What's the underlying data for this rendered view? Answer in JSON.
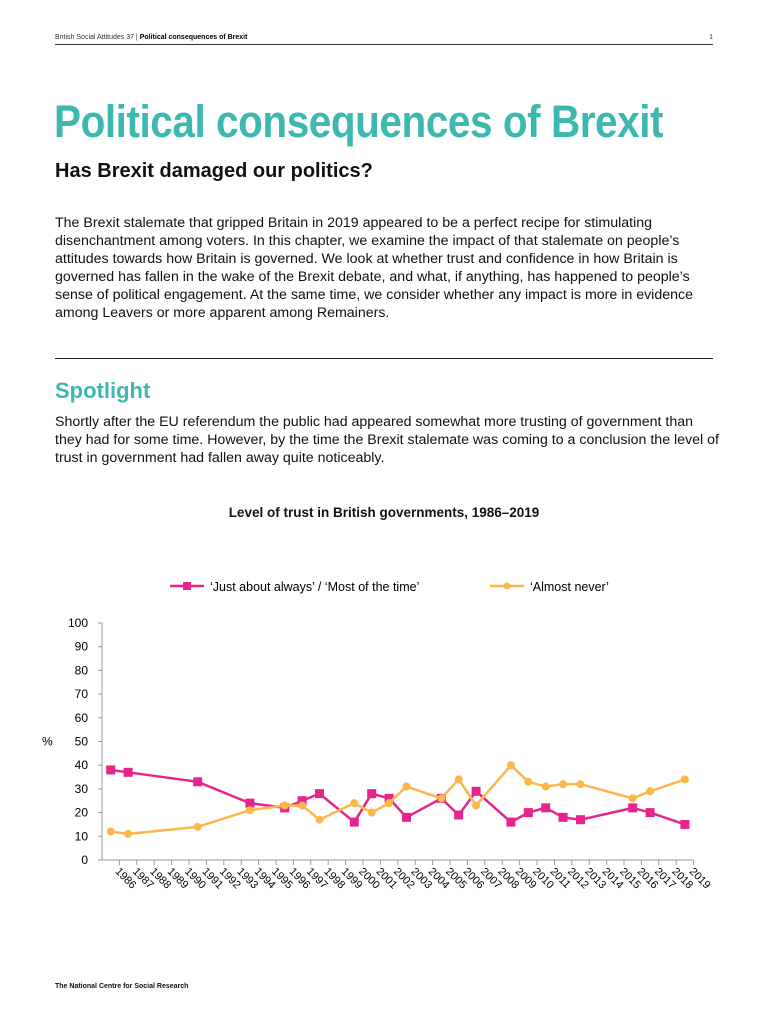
{
  "header": {
    "publication": "British Social Attitudes 37 |",
    "chapter": "Political consequences of Brexit",
    "page": "1"
  },
  "title": "Political consequences of Brexit",
  "subtitle": "Has Brexit damaged our politics?",
  "intro": "The Brexit stalemate that gripped Britain in 2019 appeared to be a perfect recipe for stimulating disenchantment among voters. In this chapter, we examine the impact of that stalemate on people’s attitudes towards how Britain is governed. We look at whether trust and confidence in how Britain is governed has fallen in the wake of the Brexit debate, and what, if anything, has happened to people’s sense of political engagement. At the same time, we consider whether any impact is more in evidence among Leavers or more apparent among Remainers.",
  "spotlight": {
    "heading": "Spotlight",
    "text": "Shortly after the EU referendum the public had appeared somewhat more trusting of government than they had for some time. However, by the time the Brexit stalemate was coming to a conclusion the level of trust in government had fallen away quite noticeably."
  },
  "footer": "The National Centre for Social Research",
  "chart_data": {
    "type": "line",
    "title": "Level of trust in British governments, 1986–2019",
    "ylabel": "%",
    "xlabel": "",
    "ylim": [
      0,
      100
    ],
    "yticks": [
      0,
      10,
      20,
      30,
      40,
      50,
      60,
      70,
      80,
      90,
      100
    ],
    "categories": [
      "1986",
      "1987",
      "1988",
      "1989",
      "1990",
      "1991",
      "1992",
      "1993",
      "1994",
      "1995",
      "1996",
      "1997",
      "1998",
      "1999",
      "2000",
      "2001",
      "2002",
      "2003",
      "2004",
      "2005",
      "2006",
      "2007",
      "2008",
      "2009",
      "2010",
      "2011",
      "2012",
      "2013",
      "2014",
      "2015",
      "2016",
      "2017",
      "2018",
      "2019"
    ],
    "legend_placement": "top",
    "series": [
      {
        "name": "‘Just about always’ / ‘Most of the time’",
        "color": "#e5258c",
        "marker": "square",
        "points": [
          [
            "1986",
            38
          ],
          [
            "1987",
            37
          ],
          [
            "1991",
            33
          ],
          [
            "1994",
            24
          ],
          [
            "1996",
            22
          ],
          [
            "1997",
            25
          ],
          [
            "1998",
            28
          ],
          [
            "2000",
            16
          ],
          [
            "2001",
            28
          ],
          [
            "2002",
            26
          ],
          [
            "2003",
            18
          ],
          [
            "2005",
            26
          ],
          [
            "2006",
            19
          ],
          [
            "2007",
            29
          ],
          [
            "2009",
            16
          ],
          [
            "2010",
            20
          ],
          [
            "2011",
            22
          ],
          [
            "2012",
            18
          ],
          [
            "2013",
            17
          ],
          [
            "2016",
            22
          ],
          [
            "2017",
            20
          ],
          [
            "2019",
            15
          ]
        ]
      },
      {
        "name": "‘Almost never’",
        "color": "#fcb74a",
        "marker": "circle",
        "points": [
          [
            "1986",
            12
          ],
          [
            "1987",
            11
          ],
          [
            "1991",
            14
          ],
          [
            "1994",
            21
          ],
          [
            "1996",
            23
          ],
          [
            "1997",
            23
          ],
          [
            "1998",
            17
          ],
          [
            "2000",
            24
          ],
          [
            "2001",
            20
          ],
          [
            "2002",
            24
          ],
          [
            "2003",
            31
          ],
          [
            "2005",
            26
          ],
          [
            "2006",
            34
          ],
          [
            "2007",
            23
          ],
          [
            "2009",
            40
          ],
          [
            "2010",
            33
          ],
          [
            "2011",
            31
          ],
          [
            "2012",
            32
          ],
          [
            "2013",
            32
          ],
          [
            "2016",
            26
          ],
          [
            "2017",
            29
          ],
          [
            "2019",
            34
          ]
        ]
      }
    ]
  }
}
